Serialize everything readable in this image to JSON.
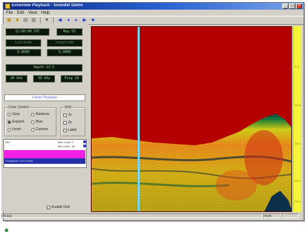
{
  "window": {
    "title": "Echoview Playback - Sounder Demo"
  },
  "menu": {
    "items": [
      "File",
      "Edit",
      "View",
      "Help"
    ]
  },
  "toolbar": {
    "buttons": [
      {
        "name": "open-icon",
        "glyph": "▣"
      },
      {
        "name": "save-icon",
        "glyph": "■"
      },
      {
        "name": "export-icon",
        "glyph": "▤"
      },
      {
        "name": "print-icon",
        "glyph": "▥"
      },
      {
        "name": "probe-icon",
        "glyph": "▼"
      },
      {
        "name": "rewind-icon",
        "glyph": "◀"
      },
      {
        "name": "back-icon",
        "glyph": "◂"
      },
      {
        "name": "play-icon",
        "glyph": "▸"
      },
      {
        "name": "forward-icon",
        "glyph": "▶"
      },
      {
        "name": "stop-icon",
        "glyph": "■"
      }
    ]
  },
  "panel": {
    "lcd": {
      "time": "12:00:00 UTC",
      "date": "May 01",
      "lat_label": "Latitude",
      "lon_label": "Longitude",
      "lat_value": "0.0000",
      "lon_value": "0.0000",
      "depth": "Depth 12.5",
      "r1": "20 kHz",
      "r2": "38 kHz",
      "r3": "Ping 10"
    },
    "fast_button": "Faster Playback",
    "color_group": {
      "label": "Color Control",
      "options": [
        {
          "label": "Gray",
          "checked": false
        },
        {
          "label": "Rainbow",
          "checked": false
        },
        {
          "label": "Expand",
          "checked": true
        },
        {
          "label": "Blue",
          "checked": false
        },
        {
          "label": "Invert",
          "checked": false
        },
        {
          "label": "Contour",
          "checked": false
        }
      ]
    },
    "grid_group": {
      "label": "Grid",
      "items": [
        {
          "label": "1x",
          "checked": true
        },
        {
          "label": "2x",
          "checked": false
        },
        {
          "label": "Label",
          "checked": false
        }
      ]
    },
    "legend": {
      "top_label": "Min",
      "line1": "Max Level: 0",
      "line2": "Min Level: -80",
      "footer": "Echogram Color Scale"
    },
    "checkbox_label": "Enable Grid"
  },
  "depth_ticks": [
    "5 m",
    "10 m",
    "15 m",
    "20 m",
    "25 m"
  ],
  "status": {
    "ready": "Ready",
    "pane2": "NUM",
    "pane3": ""
  },
  "colors": {
    "water": "#b40000",
    "seabed_dark": "#0c2f4a",
    "seabed_green": "#0f7a3d",
    "seabed_yellow": "#d6d21a",
    "seabed_orange": "#ec8a1e",
    "seabed_red": "#d02a18",
    "cursor": "#7ad7f0",
    "depth_bar": "#f4f43a"
  }
}
